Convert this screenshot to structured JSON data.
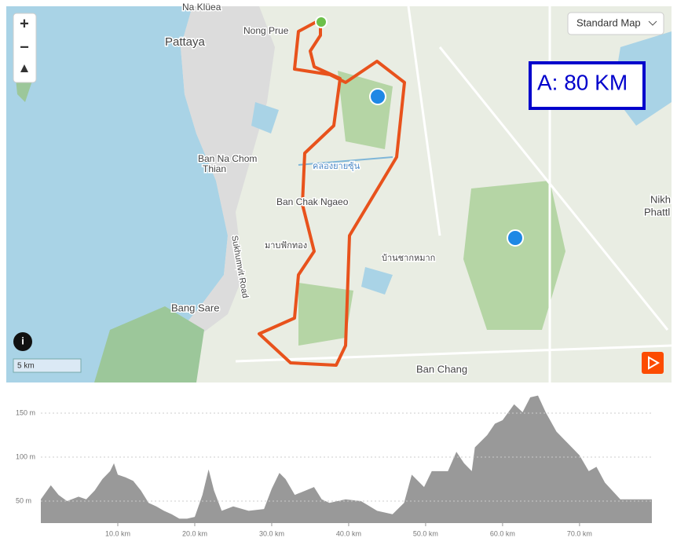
{
  "controls": {
    "zoom_in": "+",
    "zoom_out": "−",
    "map_style": "Standard Map",
    "scale": "5 km"
  },
  "badge": "A: 80 KM",
  "map": {
    "labels": [
      "Na Klüea",
      "Nong Prue",
      "Pattaya",
      "Ban Na Chom",
      "Thian",
      "Ban Chak Ngaeo",
      "Sukhumvit Road",
      "มาบฟักทอง",
      "บ้านชากหมาก",
      "คลองยายซุ้น",
      "Bang Sare",
      "Ban Chang",
      "Nikh",
      "Phattl"
    ]
  },
  "chart_data": {
    "type": "area",
    "color": "#999999",
    "x": [
      0,
      1.3,
      2.3,
      3.4,
      4.9,
      5.9,
      7,
      8,
      9,
      9.5,
      10,
      11,
      12,
      13,
      14,
      15,
      16,
      17,
      18,
      19,
      20,
      21,
      21.8,
      22.5,
      23.5,
      25,
      27,
      29,
      30,
      31,
      31.8,
      33,
      35.5,
      36.5,
      37.5,
      39.6,
      41.6,
      43.7,
      45.7,
      47.2,
      48.2,
      49.8,
      50.8,
      52.9,
      54,
      55,
      56,
      56.4,
      58,
      59,
      60,
      61.5,
      62.6,
      63.6,
      64.6,
      65.6,
      67,
      68,
      69,
      70,
      71.2,
      72.2,
      73.3,
      75.3,
      77.3,
      79.4
    ],
    "values": [
      52,
      68,
      57,
      50,
      55,
      52,
      62,
      75,
      84,
      93,
      80,
      77,
      73,
      62,
      48,
      44,
      39,
      35,
      30,
      30,
      32,
      57,
      86,
      62,
      39,
      44,
      39,
      41,
      64,
      82,
      75,
      57,
      66,
      52,
      48,
      52,
      50,
      39,
      35,
      48,
      80,
      66,
      84,
      84,
      106,
      93,
      84,
      111,
      125,
      138,
      142,
      160,
      151,
      168,
      170,
      151,
      129,
      120,
      111,
      102,
      84,
      89,
      71,
      52,
      52,
      52
    ],
    "xlim": [
      0,
      79.4
    ],
    "ylim": [
      25,
      175
    ],
    "xticks": [
      {
        "value": 10,
        "label": "10.0 km"
      },
      {
        "value": 20,
        "label": "20.0 km"
      },
      {
        "value": 30,
        "label": "30.0 km"
      },
      {
        "value": 40,
        "label": "40.0 km"
      },
      {
        "value": 50,
        "label": "50.0 km"
      },
      {
        "value": 60,
        "label": "60.0 km"
      },
      {
        "value": 70,
        "label": "70.0 km"
      }
    ],
    "yticks": [
      {
        "value": 50,
        "label": "50 m"
      },
      {
        "value": 100,
        "label": "100 m"
      },
      {
        "value": 150,
        "label": "150 m"
      }
    ],
    "grid": true
  }
}
